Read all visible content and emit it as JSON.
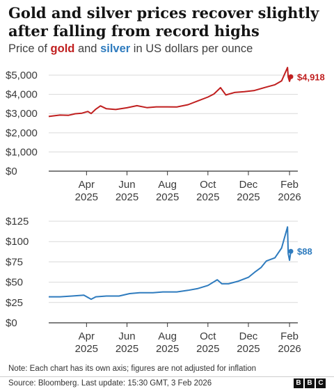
{
  "title": "Gold and silver prices recover slightly after falling from record highs",
  "subtitle": {
    "prefix": "Price of ",
    "gold_word": "gold",
    "middle": " and ",
    "silver_word": "silver",
    "suffix": " in US dollars per ounce"
  },
  "colors": {
    "gold": "#c01f1f",
    "silver": "#2e7bbe",
    "axis": "#333333",
    "grid": "#d9d9d9"
  },
  "chart_data": [
    {
      "type": "line",
      "series": [
        {
          "name": "gold",
          "x": [
            "2025-02-03",
            "2025-02-20",
            "2025-03-05",
            "2025-03-15",
            "2025-03-25",
            "2025-04-03",
            "2025-04-08",
            "2025-04-15",
            "2025-04-22",
            "2025-05-01",
            "2025-05-15",
            "2025-06-01",
            "2025-06-16",
            "2025-07-01",
            "2025-07-15",
            "2025-08-01",
            "2025-08-15",
            "2025-09-01",
            "2025-09-15",
            "2025-10-01",
            "2025-10-10",
            "2025-10-20",
            "2025-10-28",
            "2025-11-10",
            "2025-11-25",
            "2025-12-10",
            "2025-12-26",
            "2026-01-10",
            "2026-01-20",
            "2026-01-29",
            "2026-01-30",
            "2026-02-01",
            "2026-02-03"
          ],
          "values": [
            2850,
            2920,
            2910,
            2990,
            3020,
            3110,
            3000,
            3230,
            3400,
            3250,
            3210,
            3300,
            3410,
            3310,
            3350,
            3350,
            3340,
            3460,
            3650,
            3860,
            4020,
            4350,
            3970,
            4100,
            4140,
            4200,
            4360,
            4500,
            4700,
            5400,
            4900,
            4680,
            4918
          ]
        }
      ],
      "ylim": [
        0,
        5400
      ],
      "yticks": [
        0,
        1000,
        2000,
        3000,
        4000,
        5000
      ],
      "ytick_labels": [
        "$0",
        "$1,000",
        "$2,000",
        "$3,000",
        "$4,000",
        "$5,000"
      ],
      "end_label": "$4,918"
    },
    {
      "type": "line",
      "series": [
        {
          "name": "silver",
          "x": [
            "2025-02-03",
            "2025-02-20",
            "2025-03-10",
            "2025-03-28",
            "2025-04-08",
            "2025-04-15",
            "2025-05-01",
            "2025-05-20",
            "2025-06-05",
            "2025-06-20",
            "2025-07-10",
            "2025-07-25",
            "2025-08-15",
            "2025-09-01",
            "2025-09-15",
            "2025-10-01",
            "2025-10-15",
            "2025-10-22",
            "2025-11-01",
            "2025-11-15",
            "2025-12-01",
            "2025-12-10",
            "2025-12-20",
            "2025-12-28",
            "2026-01-10",
            "2026-01-20",
            "2026-01-29",
            "2026-01-30",
            "2026-02-01",
            "2026-02-03"
          ],
          "values": [
            32,
            32,
            33,
            34,
            29,
            32,
            33,
            33,
            36,
            37,
            37,
            38,
            38,
            40,
            42,
            46,
            53,
            48,
            48,
            51,
            56,
            62,
            68,
            76,
            80,
            92,
            118,
            85,
            77,
            88
          ]
        }
      ],
      "ylim": [
        0,
        125
      ],
      "yticks": [
        0,
        25,
        50,
        75,
        100,
        125
      ],
      "ytick_labels": [
        "$0",
        "$25",
        "$50",
        "$75",
        "$100",
        "$125"
      ],
      "end_label": "$88"
    }
  ],
  "xaxis": {
    "ticks": [
      "2025-04-01",
      "2025-06-01",
      "2025-08-01",
      "2025-10-01",
      "2025-12-01",
      "2026-02-01"
    ],
    "months": [
      "Apr",
      "Jun",
      "Aug",
      "Oct",
      "Dec",
      "Feb"
    ],
    "years": [
      "2025",
      "2025",
      "2025",
      "2025",
      "2025",
      "2026"
    ]
  },
  "note": "Note: Each chart has its own axis; figures are not adjusted for inflation",
  "source": "Source: Bloomberg. Last update: 15:30 GMT, 3 Feb 2026",
  "logo": [
    "B",
    "B",
    "C"
  ]
}
